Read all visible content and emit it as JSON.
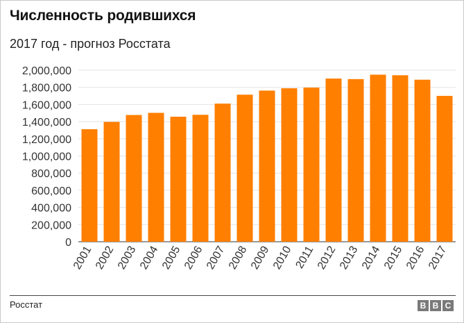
{
  "header": {
    "title": "Численность родившихся",
    "subtitle": "2017 год - прогноз Росстата"
  },
  "footer": {
    "source": "Росстат",
    "logo": [
      "B",
      "B",
      "C"
    ]
  },
  "colors": {
    "bar": "#ff7f00",
    "grid": "#e3e3e3",
    "axis": "#333333"
  },
  "chart_data": {
    "type": "bar",
    "title": "Численность родившихся",
    "subtitle": "2017 год - прогноз Росстата",
    "xlabel": "",
    "ylabel": "",
    "ylim": [
      0,
      2000000
    ],
    "yticks": [
      0,
      200000,
      400000,
      600000,
      800000,
      1000000,
      1200000,
      1400000,
      1600000,
      1800000,
      2000000
    ],
    "ytick_labels": [
      "0",
      "200,000",
      "400,000",
      "600,000",
      "800,000",
      "1,000,000",
      "1,200,000",
      "1,400,000",
      "1,600,000",
      "1,800,000",
      "2,000,000"
    ],
    "categories": [
      "2001",
      "2002",
      "2003",
      "2004",
      "2005",
      "2006",
      "2007",
      "2008",
      "2009",
      "2010",
      "2011",
      "2012",
      "2013",
      "2014",
      "2015",
      "2016",
      "2017"
    ],
    "values": [
      1311604,
      1396967,
      1477301,
      1502477,
      1457376,
      1479637,
      1610122,
      1713947,
      1761687,
      1788948,
      1796629,
      1902084,
      1895822,
      1947301,
      1940579,
      1888729,
      1700000
    ],
    "grid": true,
    "legend": "none"
  }
}
